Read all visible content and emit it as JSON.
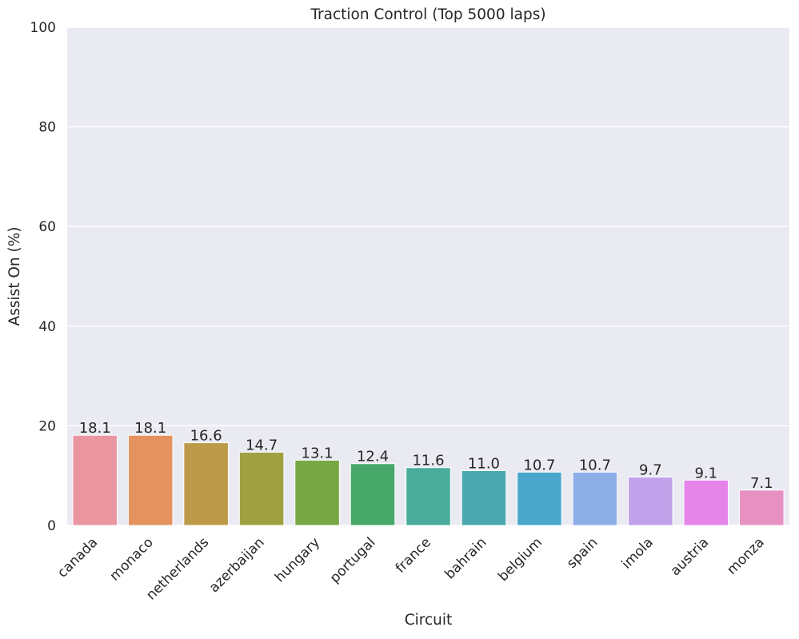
{
  "chart_data": {
    "type": "bar",
    "title": "Traction Control (Top 5000 laps)",
    "xlabel": "Circuit",
    "ylabel": "Assist On (%)",
    "ylim": [
      0,
      100
    ],
    "yticks": [
      "0",
      "20",
      "40",
      "60",
      "80",
      "100"
    ],
    "grid": true,
    "categories": [
      "canada",
      "monaco",
      "netherlands",
      "azerbaijan",
      "hungary",
      "portugal",
      "france",
      "bahrain",
      "belgium",
      "spain",
      "imola",
      "austria",
      "monza"
    ],
    "values": [
      18.1,
      18.1,
      16.6,
      14.7,
      13.1,
      12.4,
      11.6,
      11.0,
      10.7,
      10.7,
      9.7,
      9.1,
      7.1
    ],
    "value_labels": [
      "18.1",
      "18.1",
      "16.6",
      "14.7",
      "13.1",
      "12.4",
      "11.6",
      "11.0",
      "10.7",
      "10.7",
      "9.7",
      "9.1",
      "7.1"
    ],
    "colors": [
      "#ea96a1",
      "#e4935f",
      "#bd9a49",
      "#9fa042",
      "#78a846",
      "#47a86a",
      "#4aac9b",
      "#49a9ae",
      "#4aa7cb",
      "#8eaee8",
      "#c0a1ea",
      "#e585ea",
      "#e791c3"
    ],
    "background": "#eaeaf2",
    "grid_color": "#ffffff"
  }
}
